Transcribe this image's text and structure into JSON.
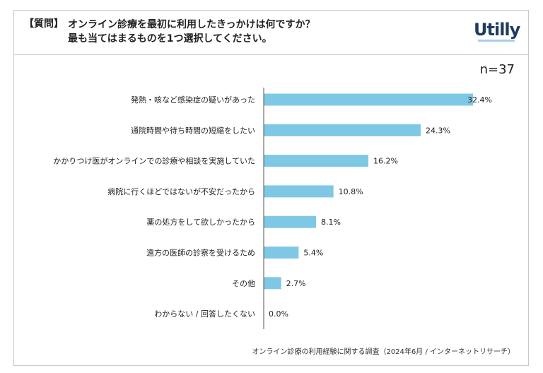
{
  "header": {
    "tag": "【質問】",
    "question_line1": "オンライン診療を最初に利用したきっかけは何ですか？",
    "question_line2": "最も当てはまるものを1つ選択してください。",
    "logo": "Utilly"
  },
  "sample_size": "n=37",
  "source": "オンライン診療の利用経験に関する調査（2024年6月 / インターネットリサーチ）",
  "chart_data": {
    "type": "bar",
    "orientation": "horizontal",
    "categories": [
      "発熱・咳など感染症の疑いがあった",
      "通院時間や待ち時間の短縮をしたい",
      "かかりつけ医がオンラインでの診療や相談を実施していた",
      "病院に行くほどではないが不安だったから",
      "薬の処方をして欲しかったから",
      "遠方の医師の診察を受けるため",
      "その他",
      "わからない / 回答したくない"
    ],
    "values": [
      32.4,
      24.3,
      16.2,
      10.8,
      8.1,
      5.4,
      2.7,
      0.0
    ],
    "labels": [
      "32.4%",
      "24.3%",
      "16.2%",
      "10.8%",
      "8.1%",
      "5.4%",
      "2.7%",
      "0.0%"
    ],
    "unit": "%",
    "color": "#7ec8e6",
    "grid": false
  }
}
